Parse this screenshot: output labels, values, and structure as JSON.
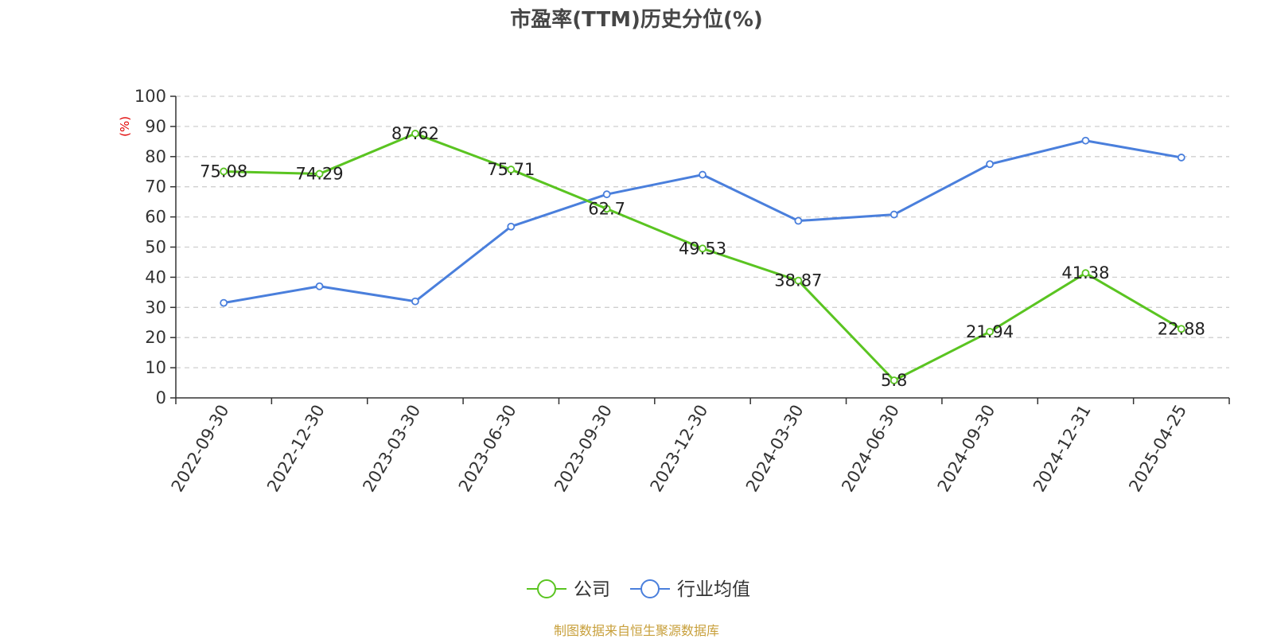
{
  "chart_data": {
    "type": "line",
    "title": "市盈率(TTM)历史分位(%)",
    "ylabel": "(%)",
    "xlabel": "",
    "ylim": [
      0,
      100
    ],
    "yticks": [
      0,
      10,
      20,
      30,
      40,
      50,
      60,
      70,
      80,
      90,
      100
    ],
    "grid": true,
    "legend_position": "bottom-center",
    "categories": [
      "2022-09-30",
      "2022-12-30",
      "2023-03-30",
      "2023-06-30",
      "2023-09-30",
      "2023-12-30",
      "2024-03-30",
      "2024-06-30",
      "2024-09-30",
      "2024-12-31",
      "2025-04-25"
    ],
    "series": [
      {
        "name": "公司",
        "color": "#5ac421",
        "values": [
          75.08,
          74.29,
          87.62,
          75.71,
          62.7,
          49.53,
          38.87,
          5.8,
          21.94,
          41.38,
          22.88
        ],
        "labels": [
          "75.08",
          "74.29",
          "87.62",
          "75.71",
          "62.7",
          "49.53",
          "38.87",
          "5.8",
          "21.94",
          "41.38",
          "22.88"
        ]
      },
      {
        "name": "行业均值",
        "color": "#4a7fdc",
        "values": [
          31.5,
          37.0,
          32.0,
          56.8,
          67.5,
          74.0,
          58.7,
          60.8,
          77.5,
          85.3,
          79.7
        ]
      }
    ],
    "source": "制图数据来自恒生聚源数据库"
  }
}
